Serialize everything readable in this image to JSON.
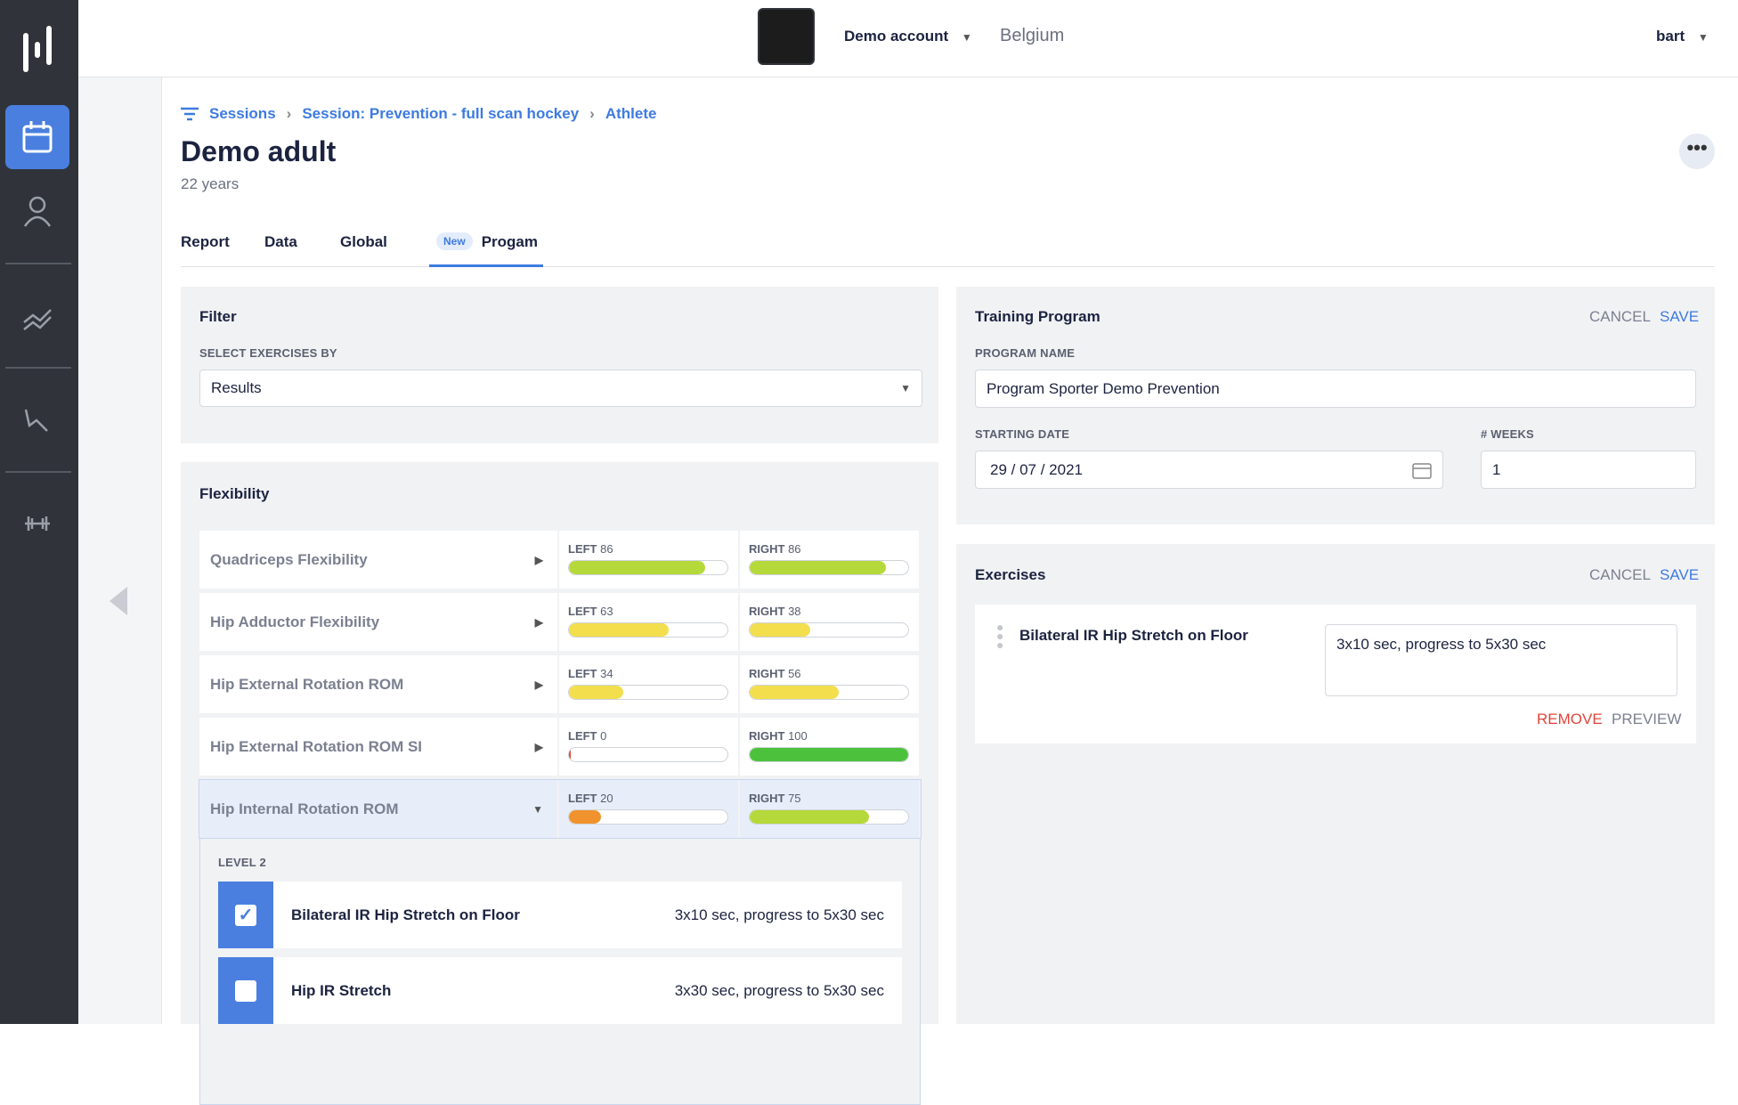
{
  "topbar": {
    "account": "Demo account",
    "region": "Belgium",
    "user": "bart"
  },
  "breadcrumb": [
    "Sessions",
    "Session: Prevention - full scan hockey",
    "Athlete"
  ],
  "athlete": {
    "name": "Demo adult",
    "age": "22 years"
  },
  "tabs": {
    "items": [
      "Report",
      "Data",
      "Global",
      "Progam"
    ],
    "badge": "New",
    "active": 3
  },
  "filter": {
    "title": "Filter",
    "label": "SELECT EXERCISES BY",
    "value": "Results"
  },
  "flexibility": {
    "title": "Flexibility",
    "left_label": "LEFT",
    "right_label": "RIGHT",
    "rows": [
      {
        "name": "Quadriceps Flexibility",
        "left": 86,
        "right": 86,
        "left_color": "#b5d93a",
        "right_color": "#b5d93a"
      },
      {
        "name": "Hip Adductor Flexibility",
        "left": 63,
        "right": 38,
        "left_color": "#f3de4e",
        "right_color": "#f3de4e"
      },
      {
        "name": "Hip External Rotation ROM",
        "left": 34,
        "right": 56,
        "left_color": "#f3de4e",
        "right_color": "#f3de4e"
      },
      {
        "name": "Hip External Rotation ROM SI",
        "left": 0,
        "right": 100,
        "left_color": "#e0453a",
        "right_color": "#4cc23c"
      },
      {
        "name": "Hip Internal Rotation ROM",
        "left": 20,
        "right": 75,
        "left_color": "#f0922e",
        "right_color": "#b5d93a"
      }
    ],
    "expanded": 4,
    "level": "LEVEL 2",
    "exercises": [
      {
        "name": "Bilateral IR Hip Stretch on Floor",
        "dosage": "3x10 sec, progress to 5x30 sec",
        "checked": true
      },
      {
        "name": "Hip IR Stretch",
        "dosage": "3x30 sec, progress to 5x30 sec",
        "checked": false
      }
    ]
  },
  "training_program": {
    "title": "Training Program",
    "cancel": "CANCEL",
    "save": "SAVE",
    "name_label": "PROGRAM NAME",
    "name_value": "Program Sporter Demo Prevention",
    "date_label": "STARTING DATE",
    "date_value": "29 / 07 / 2021",
    "weeks_label": "# WEEKS",
    "weeks_value": "1"
  },
  "exercises_panel": {
    "title": "Exercises",
    "cancel": "CANCEL",
    "save": "SAVE",
    "item": "Bilateral IR Hip Stretch on Floor",
    "note": "3x10 sec, progress to 5x30 sec",
    "remove": "REMOVE",
    "preview": "PREVIEW"
  }
}
